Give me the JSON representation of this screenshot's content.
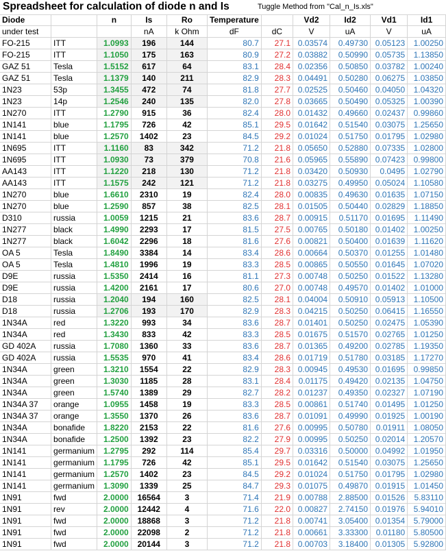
{
  "title": "Spreadsheet for calculation of diode n and Is",
  "subtitle": "Tuggle Method from \"Cal_n_Is.xls\"",
  "headers": [
    "Diode",
    "",
    "n",
    "Is",
    "Ro",
    "Temperature",
    "",
    "Vd2",
    "Id2",
    "Vd1",
    "Id1"
  ],
  "units": [
    "under test",
    "",
    "",
    "nA",
    "k Ohm",
    "dF",
    "dC",
    "V",
    "uA",
    "V",
    "uA"
  ],
  "colors": {
    "n": "#22a040",
    "blue": "#2e75b6",
    "red": "#e03030",
    "shade": "#f2f2f2"
  },
  "rows": [
    [
      "FO-215",
      "ITT",
      "1.0993",
      "196",
      "144",
      "80.7",
      "27.1",
      "0.03574",
      "0.49730",
      "0.05123",
      "1.00250"
    ],
    [
      "FO-215",
      "ITT",
      "1.1050",
      "175",
      "163",
      "80.9",
      "27.2",
      "0.03882",
      "0.50990",
      "0.05735",
      "1.13850"
    ],
    [
      "GAZ 51",
      "Tesla",
      "1.5152",
      "617",
      "64",
      "83.1",
      "28.4",
      "0.02356",
      "0.50850",
      "0.03782",
      "1.00240"
    ],
    [
      "GAZ 51",
      "Tesla",
      "1.1379",
      "140",
      "211",
      "82.9",
      "28.3",
      "0.04491",
      "0.50280",
      "0.06275",
      "1.03850"
    ],
    [
      "1N23",
      "53p",
      "1.3455",
      "472",
      "74",
      "81.8",
      "27.7",
      "0.02525",
      "0.50460",
      "0.04050",
      "1.04320"
    ],
    [
      "1N23",
      "14p",
      "1.2546",
      "240",
      "135",
      "82.0",
      "27.8",
      "0.03665",
      "0.50490",
      "0.05325",
      "1.00390"
    ],
    [
      "1N270",
      "ITT",
      "1.2790",
      "915",
      "36",
      "82.4",
      "28.0",
      "0.01432",
      "0.49660",
      "0.02437",
      "0.99860"
    ],
    [
      "1N141",
      "blue",
      "1.1795",
      "726",
      "42",
      "85.1",
      "29.5",
      "0.01642",
      "0.51540",
      "0.03075",
      "1.25650"
    ],
    [
      "1N141",
      "blue",
      "1.2570",
      "1402",
      "23",
      "84.5",
      "29.2",
      "0.01024",
      "0.51750",
      "0.01795",
      "1.02980"
    ],
    [
      "1N695",
      "ITT",
      "1.1160",
      "83",
      "342",
      "71.2",
      "21.8",
      "0.05650",
      "0.52880",
      "0.07335",
      "1.02800"
    ],
    [
      "1N695",
      "ITT",
      "1.0930",
      "73",
      "379",
      "70.8",
      "21.6",
      "0.05965",
      "0.55890",
      "0.07423",
      "0.99800"
    ],
    [
      "AA143",
      "ITT",
      "1.1220",
      "218",
      "130",
      "71.2",
      "21.8",
      "0.03420",
      "0.50930",
      "0.0495",
      "1.02790"
    ],
    [
      "AA143",
      "ITT",
      "1.1575",
      "242",
      "121",
      "71.2",
      "21.8",
      "0.03275",
      "0.49950",
      "0.05024",
      "1.10580"
    ],
    [
      "1N270",
      "blue",
      "1.6610",
      "2310",
      "19",
      "82.4",
      "28.0",
      "0.00835",
      "0.49630",
      "0.01635",
      "1.07150"
    ],
    [
      "1N270",
      "blue",
      "1.2590",
      "857",
      "38",
      "82.5",
      "28.1",
      "0.01505",
      "0.50440",
      "0.02829",
      "1.18850"
    ],
    [
      "D310",
      "russia",
      "1.0059",
      "1215",
      "21",
      "83.6",
      "28.7",
      "0.00915",
      "0.51170",
      "0.01695",
      "1.11490"
    ],
    [
      "1N277",
      "black",
      "1.4990",
      "2293",
      "17",
      "81.5",
      "27.5",
      "0.00765",
      "0.50180",
      "0.01402",
      "1.00250"
    ],
    [
      "1N277",
      "black",
      "1.6042",
      "2296",
      "18",
      "81.6",
      "27.6",
      "0.00821",
      "0.50400",
      "0.01639",
      "1.11620"
    ],
    [
      "OA 5",
      "Tesla",
      "1.8490",
      "3384",
      "14",
      "83.4",
      "28.6",
      "0.00664",
      "0.50370",
      "0.01255",
      "1.01480"
    ],
    [
      "OA 5",
      "Tesla",
      "1.4810",
      "1996",
      "19",
      "83.3",
      "28.5",
      "0.00865",
      "0.50550",
      "0.01645",
      "1.07020"
    ],
    [
      "D9E",
      "russia",
      "1.5350",
      "2414",
      "16",
      "81.1",
      "27.3",
      "0.00748",
      "0.50250",
      "0.01522",
      "1.13280"
    ],
    [
      "D9E",
      "russia",
      "1.4200",
      "2161",
      "17",
      "80.6",
      "27.0",
      "0.00748",
      "0.49570",
      "0.01402",
      "1.01000"
    ],
    [
      "D18",
      "russia",
      "1.2040",
      "194",
      "160",
      "82.5",
      "28.1",
      "0.04004",
      "0.50910",
      "0.05913",
      "1.10500"
    ],
    [
      "D18",
      "russia",
      "1.2706",
      "193",
      "170",
      "82.9",
      "28.3",
      "0.04215",
      "0.50250",
      "0.06415",
      "1.16550"
    ],
    [
      "1N34A",
      "red",
      "1.3220",
      "993",
      "34",
      "83.6",
      "28.7",
      "0.01401",
      "0.50250",
      "0.02475",
      "1.05390"
    ],
    [
      "1N34A",
      "red",
      "1.3430",
      "833",
      "42",
      "83.3",
      "28.5",
      "0.01675",
      "0.51570",
      "0.02765",
      "1.01250"
    ],
    [
      "GD 402A",
      "russia",
      "1.7080",
      "1360",
      "33",
      "83.6",
      "28.7",
      "0.01365",
      "0.49200",
      "0.02785",
      "1.19350"
    ],
    [
      "GD 402A",
      "russia",
      "1.5535",
      "970",
      "41",
      "83.4",
      "28.6",
      "0.01719",
      "0.51780",
      "0.03185",
      "1.17270"
    ],
    [
      "1N34A",
      "green",
      "1.3210",
      "1554",
      "22",
      "82.9",
      "28.3",
      "0.00945",
      "0.49530",
      "0.01695",
      "0.99850"
    ],
    [
      "1N34A",
      "green",
      "1.3030",
      "1185",
      "28",
      "83.1",
      "28.4",
      "0.01175",
      "0.49420",
      "0.02135",
      "1.04750"
    ],
    [
      "1N34A",
      "green",
      "1.5740",
      "1389",
      "29",
      "82.7",
      "28.2",
      "0.01237",
      "0.49350",
      "0.02327",
      "1.07190"
    ],
    [
      "1N34A 37",
      "orange",
      "1.0955",
      "1458",
      "19",
      "83.3",
      "28.5",
      "0.00861",
      "0.51740",
      "0.01495",
      "1.01250"
    ],
    [
      "1N34A 37",
      "orange",
      "1.3550",
      "1370",
      "26",
      "83.6",
      "28.7",
      "0.01091",
      "0.49990",
      "0.01925",
      "1.00190"
    ],
    [
      "1N34A",
      "bonafide",
      "1.8220",
      "2153",
      "22",
      "81.6",
      "27.6",
      "0.00995",
      "0.50780",
      "0.01911",
      "1.08050"
    ],
    [
      "1N34A",
      "bonafide",
      "1.2500",
      "1392",
      "23",
      "82.2",
      "27.9",
      "0.00995",
      "0.50250",
      "0.02014",
      "1.20570"
    ],
    [
      "1N141",
      "germanium",
      "1.2795",
      "292",
      "114",
      "85.4",
      "29.7",
      "0.03316",
      "0.50000",
      "0.04992",
      "1.01950"
    ],
    [
      "1N141",
      "germanium",
      "1.1795",
      "726",
      "42",
      "85.1",
      "29.5",
      "0.01642",
      "0.51540",
      "0.03075",
      "1.25650"
    ],
    [
      "1N141",
      "germanium",
      "1.2570",
      "1402",
      "23",
      "84.5",
      "29.2",
      "0.01024",
      "0.51750",
      "0.01795",
      "1.02980"
    ],
    [
      "1N141",
      "germanium",
      "1.3090",
      "1339",
      "25",
      "84.7",
      "29.3",
      "0.01075",
      "0.49870",
      "0.01915",
      "1.01450"
    ],
    [
      "1N91",
      "fwd",
      "2.0000",
      "16564",
      "3",
      "71.4",
      "21.9",
      "0.00788",
      "2.88500",
      "0.01526",
      "5.83110"
    ],
    [
      "1N91",
      "rev",
      "2.0000",
      "12442",
      "4",
      "71.6",
      "22.0",
      "0.00827",
      "2.74150",
      "0.01976",
      "5.94010"
    ],
    [
      "1N91",
      "fwd",
      "2.0000",
      "18868",
      "3",
      "71.2",
      "21.8",
      "0.00741",
      "3.05400",
      "0.01354",
      "5.79000"
    ],
    [
      "1N91",
      "fwd",
      "2.0000",
      "22098",
      "2",
      "71.2",
      "21.8",
      "0.00661",
      "3.33300",
      "0.01180",
      "5.80500"
    ],
    [
      "1N91",
      "fwd",
      "2.0000",
      "20144",
      "3",
      "71.2",
      "21.8",
      "0.00703",
      "3.18400",
      "0.01305",
      "5.92800"
    ]
  ],
  "shaded_rows": [
    0,
    1,
    2,
    3,
    4,
    5,
    9,
    10,
    11,
    12,
    22,
    23
  ]
}
